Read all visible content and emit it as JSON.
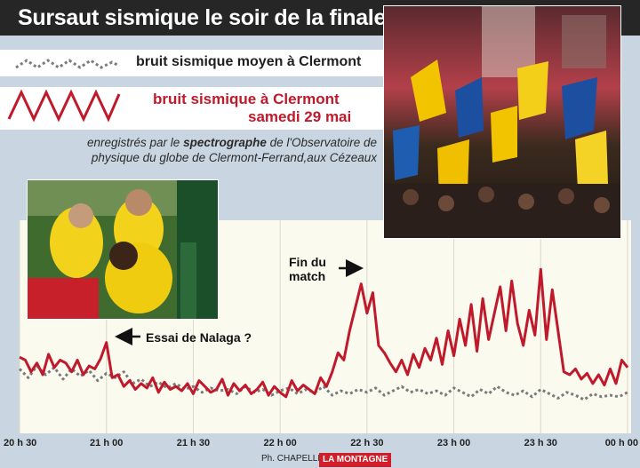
{
  "title": "Sursaut sismique le soir de la finale",
  "legend": {
    "mean_label": "bruit sismique moyen à Clermont",
    "final_label_line1": "bruit sismique à Clermont",
    "final_label_line2": "samedi 29 mai"
  },
  "caption": {
    "part1": "enregistrés par le ",
    "emphasis": "spectrographe",
    "part2": " de l'Observatoire de physique du globe de Clermont-Ferrand,aux Cézeaux"
  },
  "annotations": {
    "essai": "Essai de Nalaga ?",
    "fin_line1": "Fin du",
    "fin_line2": "match"
  },
  "credit": {
    "photographer": "Ph. CHAPELLE",
    "brand": "LA MONTAGNE"
  },
  "colors": {
    "final_series": "#c0192b",
    "mean_series": "#7b7b7b",
    "plot_bg": "#fbfaef",
    "grid": "#d8d8cc"
  },
  "chart_data": {
    "type": "line",
    "title": "Sursaut sismique le soir de la finale",
    "xlabel": "",
    "ylabel": "",
    "x_ticks": [
      "20 h 30",
      "21 h 00",
      "21 h 30",
      "22 h 00",
      "22 h 30",
      "23 h 00",
      "23 h 30",
      "00 h 00"
    ],
    "x_range_minutes": [
      0,
      210
    ],
    "y_range": [
      0,
      100
    ],
    "y_axis_shown": false,
    "grid": true,
    "legend_position": "top-left",
    "series": [
      {
        "name": "bruit sismique à Clermont samedi 29 mai",
        "style": "solid",
        "x": [
          0,
          2,
          4,
          6,
          8,
          10,
          12,
          14,
          16,
          18,
          20,
          22,
          24,
          26,
          28,
          30,
          32,
          34,
          36,
          38,
          40,
          42,
          44,
          46,
          48,
          50,
          52,
          54,
          56,
          58,
          60,
          62,
          64,
          66,
          68,
          70,
          72,
          74,
          76,
          78,
          80,
          82,
          84,
          86,
          88,
          90,
          92,
          94,
          96,
          98,
          100,
          102,
          104,
          106,
          108,
          110,
          112,
          114,
          116,
          118,
          120,
          122,
          124,
          126,
          128,
          130,
          132,
          134,
          136,
          138,
          140,
          142,
          144,
          146,
          148,
          150,
          152,
          154,
          156,
          158,
          160,
          162,
          164,
          166,
          168,
          170,
          172,
          174,
          176,
          178,
          180,
          182,
          184,
          186,
          188,
          190,
          192,
          194,
          196,
          198,
          200,
          202,
          204,
          206,
          208,
          210
        ],
        "values": [
          32,
          30,
          22,
          28,
          20,
          34,
          25,
          30,
          28,
          22,
          30,
          20,
          26,
          24,
          31,
          42,
          18,
          20,
          12,
          16,
          10,
          14,
          11,
          18,
          8,
          15,
          10,
          12,
          9,
          14,
          7,
          16,
          12,
          8,
          10,
          17,
          6,
          14,
          9,
          13,
          7,
          10,
          15,
          6,
          12,
          8,
          5,
          16,
          9,
          13,
          10,
          7,
          18,
          12,
          22,
          35,
          30,
          50,
          66,
          82,
          62,
          76,
          40,
          35,
          28,
          22,
          30,
          20,
          34,
          25,
          38,
          30,
          45,
          27,
          50,
          33,
          58,
          40,
          68,
          36,
          72,
          44,
          62,
          80,
          50,
          84,
          55,
          40,
          64,
          47,
          92,
          44,
          78,
          50,
          22,
          20,
          24,
          17,
          21,
          14,
          20,
          13,
          24,
          14,
          30,
          25
        ]
      },
      {
        "name": "bruit sismique moyen à Clermont",
        "style": "dotted",
        "x": [
          0,
          3,
          6,
          9,
          12,
          15,
          18,
          21,
          24,
          27,
          30,
          33,
          36,
          39,
          42,
          45,
          48,
          51,
          54,
          57,
          60,
          63,
          66,
          69,
          72,
          75,
          78,
          81,
          84,
          87,
          90,
          93,
          96,
          99,
          102,
          105,
          108,
          111,
          114,
          117,
          120,
          123,
          126,
          129,
          132,
          135,
          138,
          141,
          144,
          147,
          150,
          153,
          156,
          159,
          162,
          165,
          168,
          171,
          174,
          177,
          180,
          183,
          186,
          189,
          192,
          195,
          198,
          201,
          204,
          207,
          210
        ],
        "values": [
          24,
          18,
          26,
          20,
          25,
          17,
          24,
          19,
          23,
          16,
          21,
          18,
          22,
          14,
          17,
          12,
          15,
          11,
          14,
          10,
          12,
          8,
          11,
          9,
          10,
          7,
          12,
          8,
          10,
          6,
          9,
          11,
          7,
          10,
          8,
          12,
          6,
          9,
          7,
          10,
          8,
          11,
          6,
          9,
          12,
          8,
          10,
          7,
          9,
          6,
          11,
          8,
          5,
          10,
          7,
          12,
          8,
          6,
          9,
          5,
          10,
          7,
          4,
          8,
          6,
          3,
          7,
          5,
          6,
          5,
          8
        ]
      }
    ]
  }
}
